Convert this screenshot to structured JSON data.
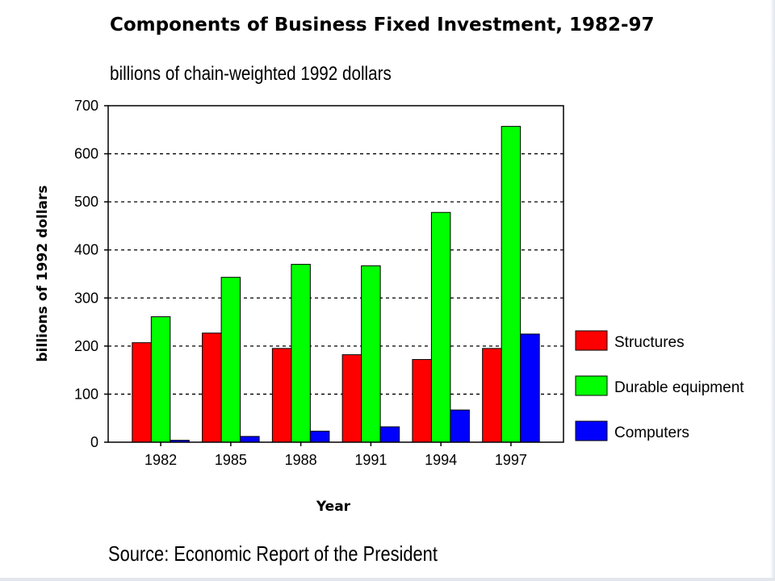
{
  "chart_data": {
    "type": "bar",
    "title": "Components of Business Fixed Investment, 1982-97",
    "subtitle": "billions of chain-weighted 1992 dollars",
    "xlabel": "Year",
    "ylabel": "billions of 1992 dollars",
    "ylim": [
      0,
      700
    ],
    "yticks": [
      0,
      100,
      200,
      300,
      400,
      500,
      600,
      700
    ],
    "grid": "horizontal dashed",
    "legend_position": "right",
    "categories": [
      "1982",
      "1985",
      "1988",
      "1991",
      "1994",
      "1997"
    ],
    "series": [
      {
        "name": "Structures",
        "color": "#ff0000",
        "values": [
          207,
          227,
          195,
          182,
          172,
          195
        ]
      },
      {
        "name": "Durable equipment",
        "color": "#00ff00",
        "values": [
          261,
          343,
          370,
          367,
          478,
          657
        ]
      },
      {
        "name": "Computers",
        "color": "#0000ff",
        "values": [
          4,
          12,
          23,
          32,
          67,
          225
        ]
      }
    ]
  },
  "source": "Source: Economic Report of the President"
}
